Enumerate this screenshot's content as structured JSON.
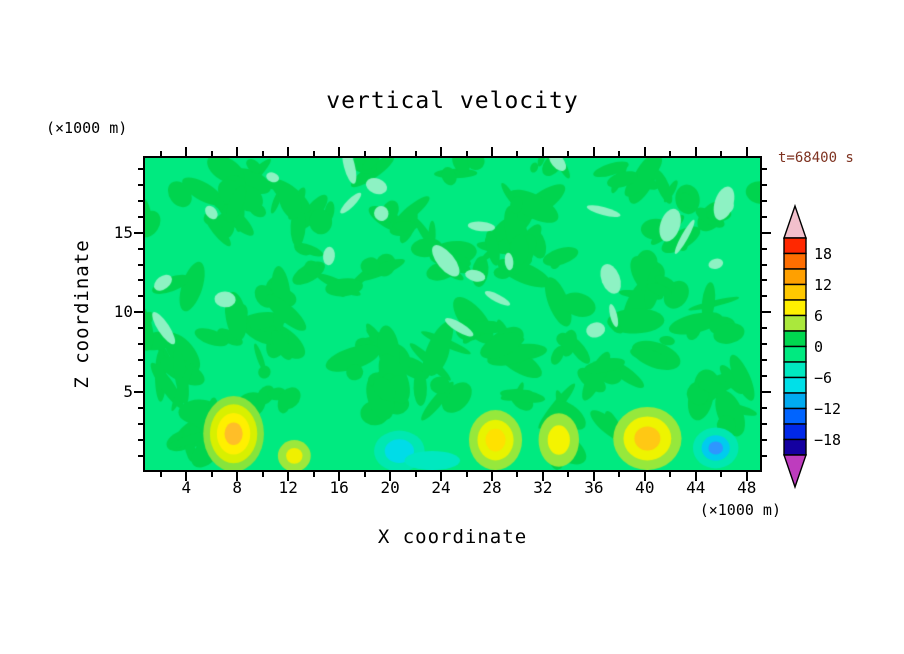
{
  "title": "vertical velocity",
  "time_label": "t=68400 s",
  "axes": {
    "x_label": "X coordinate",
    "z_label": "Z coordinate",
    "x_unit": "(×1000 m)",
    "z_unit": "(×1000 m)",
    "x_ticks": [
      4,
      8,
      12,
      16,
      20,
      24,
      28,
      32,
      36,
      40,
      44,
      48
    ],
    "z_ticks": [
      5,
      10,
      15
    ],
    "x_minor_step": 2,
    "z_minor_step": 1
  },
  "colors": {
    "time_label": "#7E3220",
    "axis": "#000000"
  },
  "chart_data": {
    "type": "heatmap",
    "title": "vertical velocity",
    "xlabel": "X coordinate (×1000 m)",
    "ylabel": "Z coordinate (×1000 m)",
    "time": "t=68400 s",
    "x_range": [
      0.6,
      49.2
    ],
    "z_range": [
      0,
      19.8
    ],
    "contour_interval": 3,
    "levels": [
      -21,
      -18,
      -15,
      -12,
      -9,
      -6,
      -3,
      0,
      3,
      6,
      9,
      12,
      15,
      18,
      21
    ],
    "colorbar": {
      "label_values": [
        18,
        12,
        6,
        0,
        -6,
        -12,
        -18
      ],
      "label_texts": [
        "18",
        "12",
        "6",
        "0",
        "−6",
        "−12",
        "−18"
      ],
      "segments": [
        "#FF2800",
        "#FF6E00",
        "#FFA000",
        "#FFC800",
        "#FFF000",
        "#AAE83C",
        "#00D750",
        "#00EA80",
        "#00E8C0",
        "#00E0E8",
        "#00AAF0",
        "#0064FF",
        "#0028E8",
        "#1400A0"
      ],
      "arrow_top": "#F2C0CC",
      "arrow_bottom": "#BE3CBE"
    },
    "background_color": "#00EA80",
    "patch_color": "#00D44E",
    "pale_patch_color": "#8DF2C3",
    "noise": {
      "seed": 20240617,
      "dark_count": 92,
      "pale_count": 26
    },
    "features": [
      {
        "name": "updraft",
        "x": 7.6,
        "z": 2.3,
        "rx": 2.4,
        "rz": 2.4,
        "peak": 10,
        "layers": [
          {
            "color": "#86E43C",
            "s": 1.0
          },
          {
            "color": "#D8F000",
            "s": 0.78
          },
          {
            "color": "#FFF000",
            "s": 0.55
          },
          {
            "color": "#FFBE28",
            "s": 0.3
          }
        ]
      },
      {
        "name": "updraft-small",
        "x": 12.4,
        "z": 0.9,
        "rx": 1.3,
        "rz": 1.0,
        "peak": 5,
        "layers": [
          {
            "color": "#9CE83C",
            "s": 1.0
          },
          {
            "color": "#F0F000",
            "s": 0.5
          }
        ]
      },
      {
        "name": "downdraft",
        "x": 20.7,
        "z": 1.2,
        "rx": 2.0,
        "rz": 1.3,
        "peak": -5,
        "layers": [
          {
            "color": "#00E8B0",
            "s": 1.0
          },
          {
            "color": "#00DCE8",
            "s": 0.58
          }
        ]
      },
      {
        "name": "downdraft-shallow",
        "x": 23.3,
        "z": 0.6,
        "rx": 2.2,
        "rz": 0.6,
        "peak": -4,
        "layers": [
          {
            "color": "#00E8C0",
            "s": 1.0
          }
        ]
      },
      {
        "name": "updraft",
        "x": 28.3,
        "z": 1.9,
        "rx": 2.1,
        "rz": 1.9,
        "peak": 8,
        "layers": [
          {
            "color": "#96E83C",
            "s": 1.0
          },
          {
            "color": "#E8F400",
            "s": 0.68
          },
          {
            "color": "#FFE100",
            "s": 0.38
          }
        ]
      },
      {
        "name": "updraft",
        "x": 33.3,
        "z": 1.9,
        "rx": 1.6,
        "rz": 1.7,
        "peak": 6,
        "layers": [
          {
            "color": "#96E83C",
            "s": 1.0
          },
          {
            "color": "#F4F400",
            "s": 0.55
          }
        ]
      },
      {
        "name": "updraft",
        "x": 40.3,
        "z": 2.0,
        "rx": 2.7,
        "rz": 2.0,
        "peak": 10,
        "layers": [
          {
            "color": "#96E83C",
            "s": 1.0
          },
          {
            "color": "#EEF400",
            "s": 0.7
          },
          {
            "color": "#FFC814",
            "s": 0.38
          }
        ]
      },
      {
        "name": "downdraft",
        "x": 45.7,
        "z": 1.4,
        "rx": 1.8,
        "rz": 1.3,
        "peak": -9,
        "layers": [
          {
            "color": "#00E8B0",
            "s": 1.0
          },
          {
            "color": "#00CCEE",
            "s": 0.62
          },
          {
            "color": "#2E96FF",
            "s": 0.32
          }
        ]
      }
    ]
  }
}
